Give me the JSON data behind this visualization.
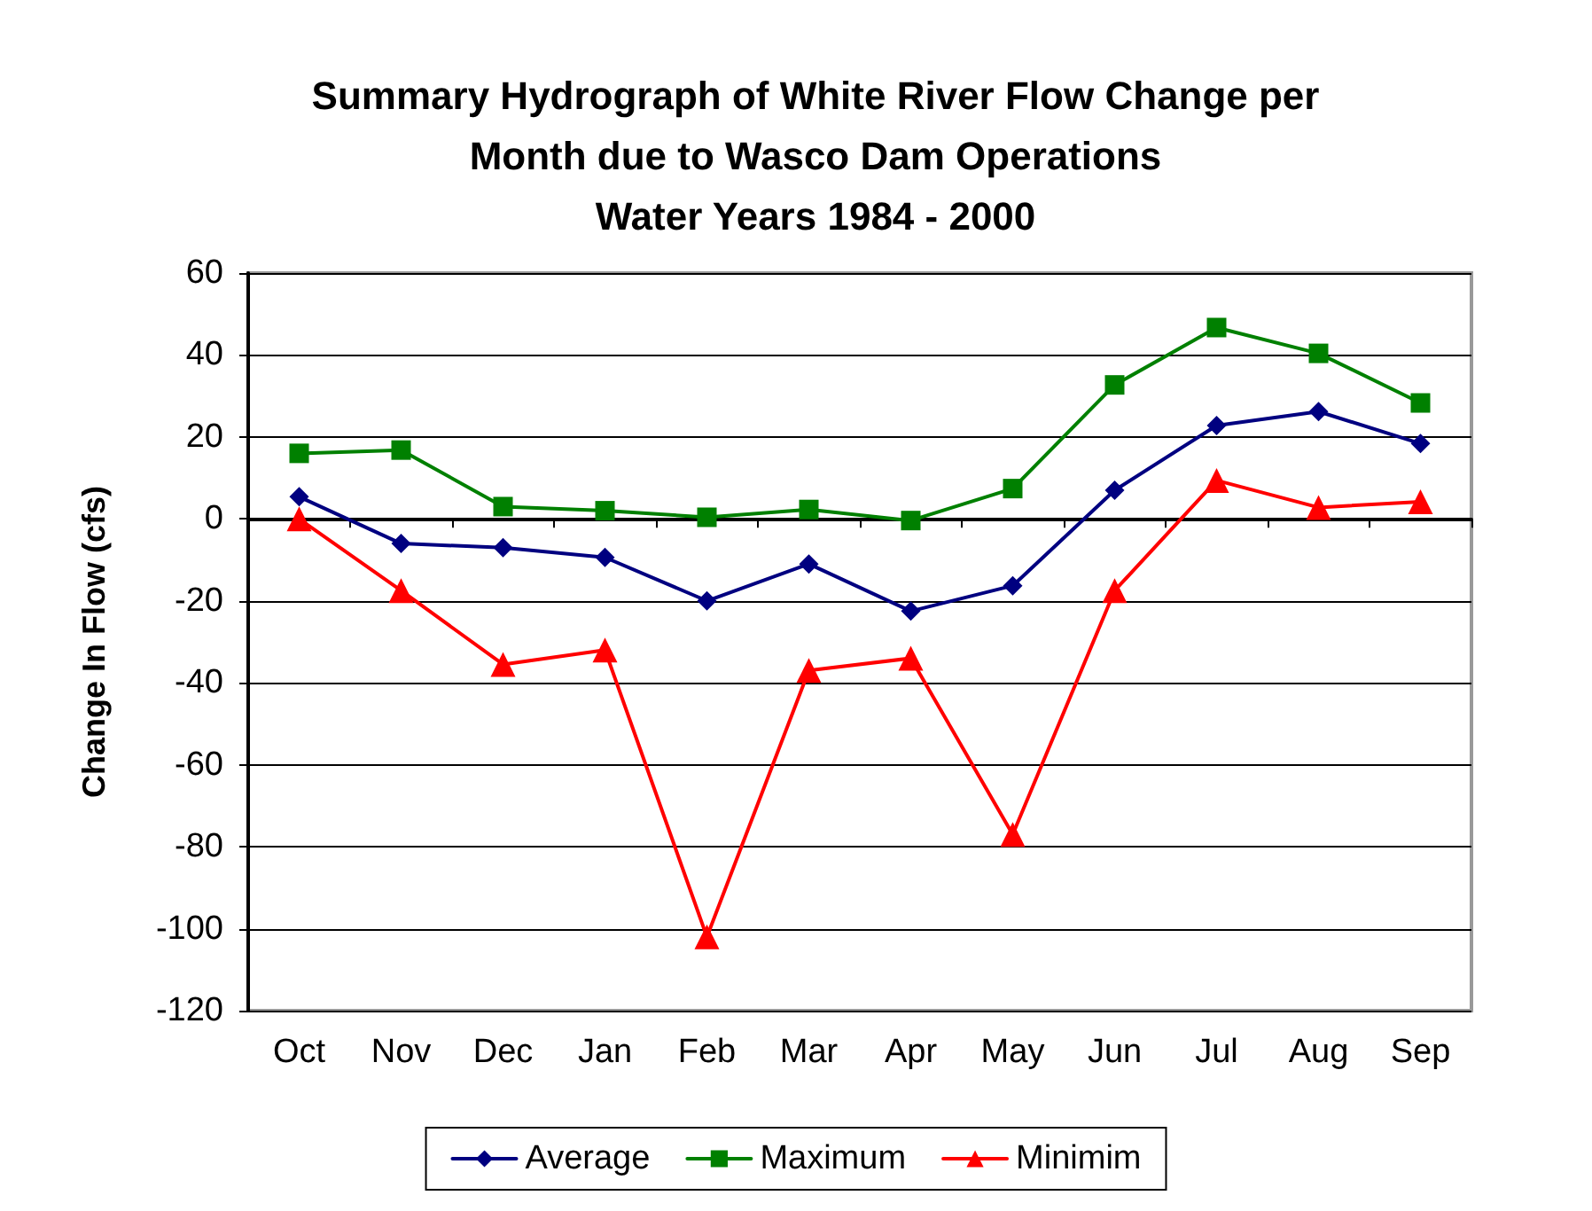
{
  "chart_data": {
    "type": "line",
    "title": "Summary Hydrograph of White River Flow Change per\nMonth due to Wasco Dam Operations\nWater Years 1984 - 2000",
    "ylabel": "Change In Flow (cfs)",
    "categories": [
      "Oct",
      "Nov",
      "Dec",
      "Jan",
      "Feb",
      "Mar",
      "Apr",
      "May",
      "Jun",
      "Jul",
      "Aug",
      "Sep"
    ],
    "series": [
      {
        "name": "Average",
        "color": "#000080",
        "marker": "diamond",
        "values": [
          5.4,
          -6,
          -7,
          -9.4,
          -20,
          -11,
          -22.5,
          -16.3,
          7,
          22.8,
          26.2,
          18.4
        ]
      },
      {
        "name": "Maximum",
        "color": "#008000",
        "marker": "square",
        "values": [
          16,
          16.8,
          3,
          2,
          0.4,
          2.3,
          -0.4,
          7.4,
          32.7,
          46.7,
          40.4,
          28.3
        ]
      },
      {
        "name": "Minimim",
        "color": "#ff0000",
        "marker": "triangle",
        "values": [
          0,
          -17.5,
          -35.5,
          -32,
          -102,
          -37,
          -34,
          -77,
          -17.5,
          9.4,
          2.8,
          4.2
        ]
      }
    ],
    "ylim": [
      -120,
      60
    ],
    "yticks": [
      -120,
      -100,
      -80,
      -60,
      -40,
      -20,
      0,
      20,
      40,
      60
    ],
    "grid": "y",
    "legend": "bottom",
    "line_style": "solid"
  }
}
